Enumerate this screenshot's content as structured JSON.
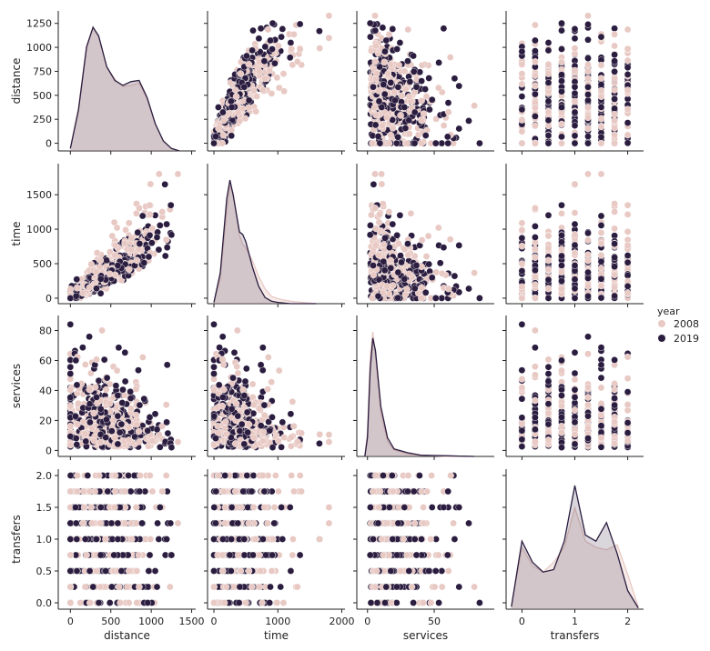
{
  "chart_data": {
    "type": "pairplot",
    "variables": [
      "distance",
      "time",
      "services",
      "transfers"
    ],
    "hue": "year",
    "legend": {
      "title": "year",
      "placement": "right",
      "entries": [
        {
          "label": "2008",
          "color": "#e8c9c4"
        },
        {
          "label": "2019",
          "color": "#2b1d3f"
        }
      ]
    },
    "axes": {
      "distance": {
        "range": [
          -150,
          1550
        ],
        "ticks": [
          0,
          500,
          1000,
          1500
        ],
        "tick_labels": [
          "0",
          "500",
          "1000",
          "1500"
        ],
        "y_range": [
          -80,
          1380
        ],
        "y_ticks": [
          0,
          250,
          500,
          750,
          1000,
          1250
        ],
        "y_tick_labels": [
          "0",
          "250",
          "500",
          "750",
          "1000",
          "1250"
        ]
      },
      "time": {
        "range": [
          -100,
          2050
        ],
        "ticks": [
          0,
          1000,
          2000
        ],
        "tick_labels": [
          "0",
          "1000",
          "2000"
        ],
        "y_range": [
          -80,
          1950
        ],
        "y_ticks": [
          0,
          500,
          1000,
          1500
        ],
        "y_tick_labels": [
          "0",
          "500",
          "1000",
          "1500"
        ]
      },
      "services": {
        "range": [
          -8,
          95
        ],
        "ticks": [
          0,
          50
        ],
        "tick_labels": [
          "0",
          "50"
        ],
        "y_range": [
          -4,
          90
        ],
        "y_ticks": [
          0,
          20,
          40,
          60,
          80
        ],
        "y_tick_labels": [
          "0",
          "20",
          "40",
          "60",
          "80"
        ]
      },
      "transfers": {
        "range": [
          -0.3,
          2.3
        ],
        "ticks": [
          0,
          1,
          2
        ],
        "tick_labels": [
          "0",
          "1",
          "2"
        ],
        "y_range": [
          -0.1,
          2.1
        ],
        "y_ticks": [
          0,
          0.5,
          1,
          1.5,
          2
        ],
        "y_tick_labels": [
          "0.0",
          "0.5",
          "1.0",
          "1.5",
          "2.0"
        ]
      }
    },
    "kde": {
      "distance": {
        "x": [
          0,
          100,
          200,
          280,
          350,
          450,
          550,
          650,
          750,
          850,
          950,
          1050,
          1150,
          1250,
          1350
        ],
        "2008": [
          0.02,
          0.35,
          0.85,
          1.0,
          0.92,
          0.68,
          0.58,
          0.52,
          0.53,
          0.55,
          0.42,
          0.22,
          0.08,
          0.02,
          0
        ],
        "2019": [
          0.02,
          0.33,
          0.84,
          1.0,
          0.93,
          0.68,
          0.57,
          0.53,
          0.56,
          0.57,
          0.43,
          0.22,
          0.08,
          0.02,
          0
        ]
      },
      "time": {
        "x": [
          0,
          100,
          200,
          250,
          300,
          400,
          450,
          500,
          600,
          700,
          800,
          900,
          1000,
          1200,
          1400,
          1600
        ],
        "2008": [
          0.01,
          0.2,
          0.75,
          0.95,
          0.9,
          0.55,
          0.48,
          0.45,
          0.35,
          0.22,
          0.12,
          0.06,
          0.04,
          0.02,
          0.01,
          0
        ],
        "2019": [
          0.01,
          0.25,
          0.85,
          1.0,
          0.88,
          0.58,
          0.56,
          0.5,
          0.3,
          0.14,
          0.05,
          0.02,
          0.01,
          0,
          0,
          0
        ]
      },
      "services": {
        "x": [
          -2,
          0,
          2,
          4,
          6,
          10,
          15,
          20,
          30,
          40,
          60,
          80
        ],
        "2008": [
          0.0,
          0.2,
          0.8,
          1.0,
          0.8,
          0.35,
          0.12,
          0.05,
          0.02,
          0.01,
          0.0,
          0.0
        ],
        "2019": [
          0.0,
          0.15,
          0.7,
          0.95,
          0.85,
          0.4,
          0.15,
          0.06,
          0.03,
          0.01,
          0.005,
          0.0
        ]
      },
      "transfers": {
        "x": [
          -0.2,
          0,
          0.2,
          0.4,
          0.6,
          0.8,
          1.0,
          1.2,
          1.4,
          1.6,
          1.8,
          2.0,
          2.2
        ],
        "2008": [
          0.02,
          0.5,
          0.35,
          0.3,
          0.38,
          0.5,
          0.82,
          0.55,
          0.5,
          0.48,
          0.52,
          0.28,
          0.02
        ],
        "2019": [
          0.02,
          0.55,
          0.38,
          0.3,
          0.32,
          0.55,
          1.0,
          0.6,
          0.55,
          0.7,
          0.45,
          0.15,
          0.01
        ]
      }
    }
  }
}
